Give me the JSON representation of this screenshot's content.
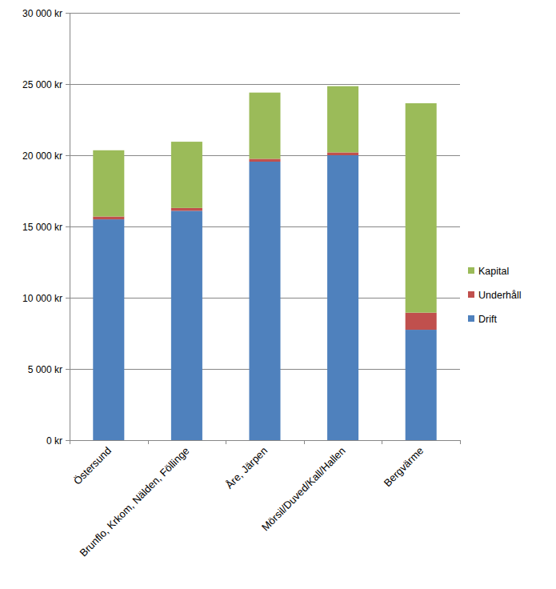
{
  "chart_data": {
    "type": "bar",
    "stacked": true,
    "grid": true,
    "legend": "right",
    "categories": [
      "Östersund",
      "Brunflo, Krkom, Nälden, Föllinge",
      "Åre, Järpen",
      "Mörsil/Duved/Kall/Hallen",
      "Bergvärme"
    ],
    "series": [
      {
        "name": "Drift",
        "color": "#4f81bd",
        "values": [
          15500,
          16100,
          19550,
          20000,
          7750
        ]
      },
      {
        "name": "Underhåll",
        "color": "#c0504d",
        "values": [
          200,
          200,
          200,
          200,
          1200
        ]
      },
      {
        "name": "Kapital",
        "color": "#9bbb59",
        "values": [
          4650,
          4650,
          4650,
          4650,
          14700
        ]
      }
    ],
    "ylim": [
      0,
      30000
    ],
    "yticks": [
      {
        "value": 0,
        "label": "0 kr"
      },
      {
        "value": 5000,
        "label": "5 000 kr"
      },
      {
        "value": 10000,
        "label": "10 000 kr"
      },
      {
        "value": 15000,
        "label": "15 000 kr"
      },
      {
        "value": 20000,
        "label": "20 000 kr"
      },
      {
        "value": 25000,
        "label": "25 000 kr"
      },
      {
        "value": 30000,
        "label": "30 000 kr"
      }
    ]
  }
}
